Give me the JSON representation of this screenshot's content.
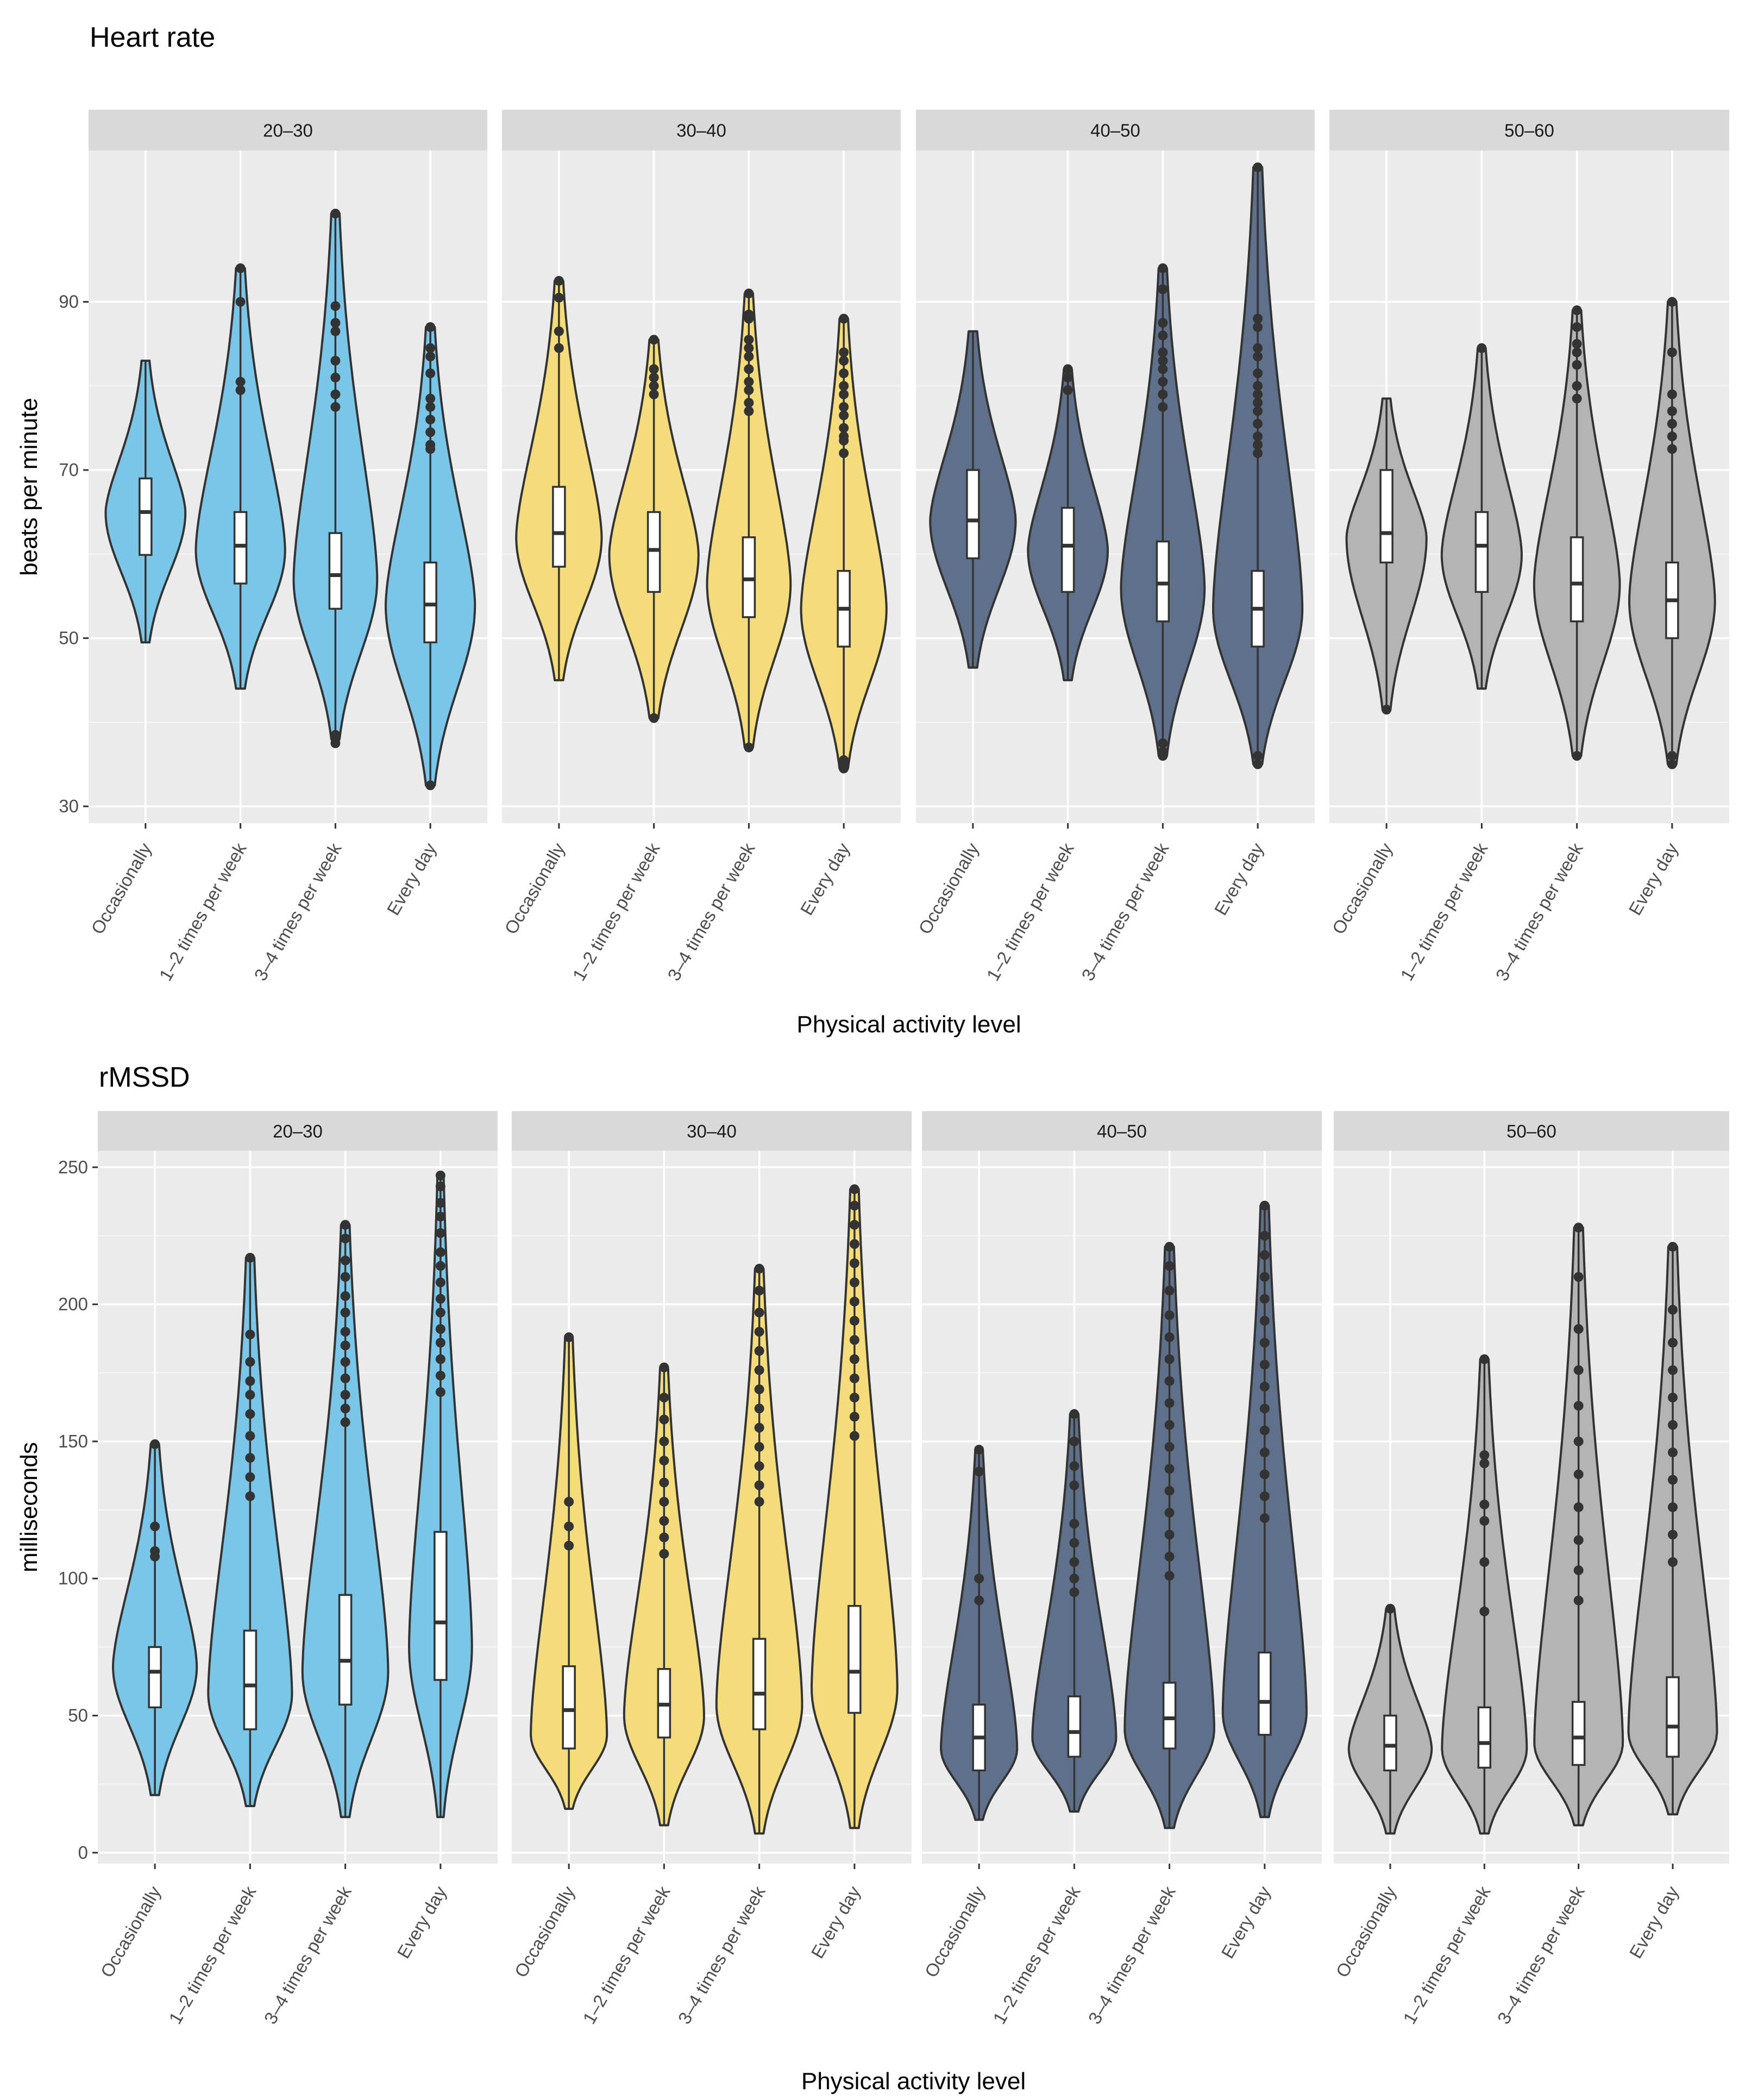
{
  "colors": {
    "age_groups": {
      "20–30": "#7ac6e8",
      "30–40": "#f4dc7a",
      "40–50": "#5f708a",
      "50–60": "#b4b4b4"
    },
    "panel_background": "#ebebeb",
    "strip_background": "#d9d9d9",
    "grid_major": "#ffffff",
    "outline": "#333333"
  },
  "chart_data": [
    {
      "type": "violin",
      "title": "Heart rate",
      "xlabel": "Physical activity level",
      "ylabel": "beats per minute",
      "ylim": [
        28,
        108
      ],
      "yticks": [
        30,
        50,
        70,
        90
      ],
      "facets": [
        "20–30",
        "30–40",
        "40–50",
        "50–60"
      ],
      "categories": [
        "Occasionally",
        "1–2 times per week",
        "3–4 times per week",
        "Every day"
      ],
      "series": [
        {
          "name": "20–30",
          "groups": [
            {
              "category": "Occasionally",
              "min": 49.5,
              "q1": 59.9,
              "median": 65.0,
              "q3": 69.0,
              "max": 83.0,
              "mode": 65.0,
              "width": 0.42,
              "outliers": []
            },
            {
              "category": "1–2 times per week",
              "min": 44.0,
              "q1": 56.5,
              "median": 61.0,
              "q3": 65.0,
              "max": 94.0,
              "mode": 60.5,
              "width": 0.47,
              "outliers": [
                94.0,
                90.0,
                80.5,
                79.5
              ]
            },
            {
              "category": "3–4 times per week",
              "min": 38.0,
              "q1": 53.5,
              "median": 57.5,
              "q3": 62.5,
              "max": 100.5,
              "mode": 57.0,
              "width": 0.44,
              "outliers": [
                100.5,
                89.5,
                87.5,
                86.5,
                83.0,
                81.0,
                79.0,
                77.5,
                38.5,
                38.0,
                37.5
              ]
            },
            {
              "category": "Every day",
              "min": 32.5,
              "q1": 49.5,
              "median": 54.0,
              "q3": 59.0,
              "max": 87.0,
              "mode": 54.0,
              "width": 0.47,
              "outliers": [
                87.0,
                84.5,
                83.5,
                81.5,
                78.5,
                77.5,
                76.0,
                74.5,
                73.0,
                72.5,
                32.5
              ]
            }
          ]
        },
        {
          "name": "30–40",
          "groups": [
            {
              "category": "Occasionally",
              "min": 45.0,
              "q1": 58.5,
              "median": 62.5,
              "q3": 68.0,
              "max": 92.5,
              "mode": 62.0,
              "width": 0.45,
              "outliers": [
                92.5,
                90.5,
                86.5,
                84.5
              ]
            },
            {
              "category": "1–2 times per week",
              "min": 40.5,
              "q1": 55.5,
              "median": 60.5,
              "q3": 65.0,
              "max": 85.5,
              "mode": 60.0,
              "width": 0.47,
              "outliers": [
                85.5,
                82.0,
                81.0,
                80.0,
                79.0,
                40.5
              ]
            },
            {
              "category": "3–4 times per week",
              "min": 37.0,
              "q1": 52.5,
              "median": 57.0,
              "q3": 62.0,
              "max": 91.0,
              "mode": 56.5,
              "width": 0.44,
              "outliers": [
                91.0,
                88.5,
                88.0,
                85.5,
                84.5,
                83.5,
                82.0,
                80.5,
                79.5,
                78.0,
                77.0,
                37.0
              ]
            },
            {
              "category": "Every day",
              "min": 34.5,
              "q1": 49.0,
              "median": 53.5,
              "q3": 58.0,
              "max": 88.0,
              "mode": 53.5,
              "width": 0.45,
              "outliers": [
                88.0,
                84.0,
                83.0,
                81.5,
                80.0,
                79.0,
                77.5,
                76.5,
                75.0,
                74.0,
                73.5,
                72.0,
                35.5,
                35.0,
                34.5
              ]
            }
          ]
        },
        {
          "name": "40–50",
          "groups": [
            {
              "category": "Occasionally",
              "min": 46.5,
              "q1": 59.5,
              "median": 64.0,
              "q3": 70.0,
              "max": 86.5,
              "mode": 64.0,
              "width": 0.45,
              "outliers": []
            },
            {
              "category": "1–2 times per week",
              "min": 45.0,
              "q1": 55.5,
              "median": 61.0,
              "q3": 65.5,
              "max": 82.0,
              "mode": 60.5,
              "width": 0.42,
              "outliers": [
                82.0,
                81.0,
                79.5
              ]
            },
            {
              "category": "3–4 times per week",
              "min": 36.0,
              "q1": 52.0,
              "median": 56.5,
              "q3": 61.5,
              "max": 94.0,
              "mode": 56.0,
              "width": 0.44,
              "outliers": [
                94.0,
                91.5,
                87.5,
                86.0,
                84.0,
                83.0,
                82.0,
                80.5,
                79.0,
                77.5,
                37.5,
                36.5,
                36.0
              ]
            },
            {
              "category": "Every day",
              "min": 35.0,
              "q1": 49.0,
              "median": 53.5,
              "q3": 58.0,
              "max": 106.0,
              "mode": 53.5,
              "width": 0.47,
              "outliers": [
                106.0,
                88.0,
                87.0,
                84.5,
                83.5,
                81.5,
                80.0,
                79.0,
                78.0,
                77.0,
                75.5,
                74.0,
                73.0,
                72.0,
                36.0,
                35.0
              ]
            }
          ]
        },
        {
          "name": "50–60",
          "groups": [
            {
              "category": "Occasionally",
              "min": 41.5,
              "q1": 59.0,
              "median": 62.5,
              "q3": 70.0,
              "max": 78.5,
              "mode": 62.0,
              "width": 0.42,
              "outliers": [
                41.5
              ]
            },
            {
              "category": "1–2 times per week",
              "min": 44.0,
              "q1": 55.5,
              "median": 61.0,
              "q3": 65.0,
              "max": 84.5,
              "mode": 60.0,
              "width": 0.42,
              "outliers": [
                84.5
              ]
            },
            {
              "category": "3–4 times per week",
              "min": 36.0,
              "q1": 52.0,
              "median": 56.5,
              "q3": 62.0,
              "max": 89.0,
              "mode": 56.5,
              "width": 0.45,
              "outliers": [
                89.0,
                87.0,
                85.0,
                84.0,
                82.5,
                80.0,
                78.5,
                36.0
              ]
            },
            {
              "category": "Every day",
              "min": 35.0,
              "q1": 50.0,
              "median": 54.5,
              "q3": 59.0,
              "max": 90.0,
              "mode": 54.5,
              "width": 0.45,
              "outliers": [
                90.0,
                84.0,
                79.0,
                77.0,
                75.5,
                74.0,
                72.5,
                36.0,
                35.0
              ]
            }
          ]
        }
      ]
    },
    {
      "type": "violin",
      "title": "rMSSD",
      "xlabel": "Physical activity level",
      "ylabel": "milliseconds",
      "ylim": [
        -4,
        256
      ],
      "yticks": [
        0,
        50,
        100,
        150,
        200,
        250
      ],
      "facets": [
        "20–30",
        "30–40",
        "40–50",
        "50–60"
      ],
      "categories": [
        "Occasionally",
        "1–2 times per week",
        "3–4 times per week",
        "Every day"
      ],
      "series": [
        {
          "name": "20–30",
          "groups": [
            {
              "category": "Occasionally",
              "min": 21.0,
              "q1": 53.0,
              "median": 66.0,
              "q3": 75.0,
              "max": 149.0,
              "mode": 68.0,
              "width": 0.44,
              "outliers": [
                149.0,
                119.0,
                110.0,
                108.0
              ]
            },
            {
              "category": "1–2 times per week",
              "min": 17.0,
              "q1": 45.0,
              "median": 61.0,
              "q3": 81.0,
              "max": 217.0,
              "mode": 58.0,
              "width": 0.44,
              "outliers": [
                217.0,
                189.0,
                179.0,
                172.0,
                167.0,
                160.0,
                152.0,
                144.0,
                137.0,
                130.0
              ]
            },
            {
              "category": "3–4 times per week",
              "min": 13.0,
              "q1": 54.0,
              "median": 70.0,
              "q3": 94.0,
              "max": 229.0,
              "mode": 66.0,
              "width": 0.45,
              "outliers": [
                229.0,
                224.0,
                216.0,
                210.0,
                203.0,
                197.0,
                190.0,
                185.0,
                179.0,
                173.0,
                167.0,
                162.0,
                157.0
              ]
            },
            {
              "category": "Every day",
              "min": 13.0,
              "q1": 63.0,
              "median": 84.0,
              "q3": 117.0,
              "max": 247.0,
              "mode": 75.0,
              "width": 0.33,
              "outliers": [
                247.0,
                243.0,
                237.0,
                232.0,
                226.0,
                219.0,
                214.0,
                208.0,
                202.0,
                197.0,
                191.0,
                186.0,
                180.0,
                174.0,
                168.0
              ]
            }
          ]
        },
        {
          "name": "30–40",
          "groups": [
            {
              "category": "Occasionally",
              "min": 16.0,
              "q1": 38.0,
              "median": 52.0,
              "q3": 68.0,
              "max": 188.0,
              "mode": 43.0,
              "width": 0.4,
              "outliers": [
                188.0,
                128.0,
                119.0,
                112.0
              ]
            },
            {
              "category": "1–2 times per week",
              "min": 10.0,
              "q1": 42.0,
              "median": 54.0,
              "q3": 67.0,
              "max": 177.0,
              "mode": 50.0,
              "width": 0.42,
              "outliers": [
                177.0,
                166.0,
                158.0,
                150.0,
                143.0,
                135.0,
                128.0,
                121.0,
                115.0,
                109.0
              ]
            },
            {
              "category": "3–4 times per week",
              "min": 7.0,
              "q1": 45.0,
              "median": 58.0,
              "q3": 78.0,
              "max": 213.0,
              "mode": 54.0,
              "width": 0.45,
              "outliers": [
                213.0,
                205.0,
                197.0,
                190.0,
                183.0,
                176.0,
                169.0,
                162.0,
                155.0,
                148.0,
                141.0,
                134.0,
                128.0
              ]
            },
            {
              "category": "Every day",
              "min": 9.0,
              "q1": 51.0,
              "median": 66.0,
              "q3": 90.0,
              "max": 242.0,
              "mode": 60.0,
              "width": 0.45,
              "outliers": [
                242.0,
                236.0,
                229.0,
                222.0,
                215.0,
                208.0,
                201.0,
                194.0,
                187.0,
                180.0,
                173.0,
                166.0,
                159.0,
                152.0
              ]
            }
          ]
        },
        {
          "name": "40–50",
          "groups": [
            {
              "category": "Occasionally",
              "min": 12.0,
              "q1": 30.0,
              "median": 42.0,
              "q3": 54.0,
              "max": 147.0,
              "mode": 38.0,
              "width": 0.4,
              "outliers": [
                147.0,
                139.0,
                100.0,
                92.0
              ]
            },
            {
              "category": "1–2 times per week",
              "min": 15.0,
              "q1": 35.0,
              "median": 44.0,
              "q3": 57.0,
              "max": 160.0,
              "mode": 42.0,
              "width": 0.44,
              "outliers": [
                160.0,
                150.0,
                141.0,
                134.0,
                120.0,
                113.0,
                106.0,
                100.0,
                95.0
              ]
            },
            {
              "category": "3–4 times per week",
              "min": 9.0,
              "q1": 38.0,
              "median": 49.0,
              "q3": 62.0,
              "max": 221.0,
              "mode": 45.0,
              "width": 0.47,
              "outliers": [
                221.0,
                214.0,
                205.0,
                196.0,
                188.0,
                180.0,
                172.0,
                164.0,
                156.0,
                148.0,
                140.0,
                132.0,
                124.0,
                116.0,
                108.0,
                101.0
              ]
            },
            {
              "category": "Every day",
              "min": 13.0,
              "q1": 43.0,
              "median": 55.0,
              "q3": 73.0,
              "max": 236.0,
              "mode": 51.0,
              "width": 0.44,
              "outliers": [
                236.0,
                225.0,
                218.0,
                210.0,
                202.0,
                194.0,
                186.0,
                178.0,
                170.0,
                162.0,
                154.0,
                146.0,
                138.0,
                130.0,
                122.0
              ]
            }
          ]
        },
        {
          "name": "50–60",
          "groups": [
            {
              "category": "Occasionally",
              "min": 7.0,
              "q1": 30.0,
              "median": 39.0,
              "q3": 50.0,
              "max": 89.0,
              "mode": 38.0,
              "width": 0.44,
              "outliers": [
                89.0
              ]
            },
            {
              "category": "1–2 times per week",
              "min": 7.0,
              "q1": 31.0,
              "median": 40.0,
              "q3": 53.0,
              "max": 180.0,
              "mode": 38.0,
              "width": 0.45,
              "outliers": [
                180.0,
                145.0,
                142.0,
                127.0,
                121.0,
                106.0,
                88.0
              ]
            },
            {
              "category": "3–4 times per week",
              "min": 10.0,
              "q1": 32.0,
              "median": 42.0,
              "q3": 55.0,
              "max": 228.0,
              "mode": 40.0,
              "width": 0.47,
              "outliers": [
                228.0,
                210.0,
                191.0,
                176.0,
                163.0,
                150.0,
                138.0,
                126.0,
                114.0,
                103.0,
                92.0
              ]
            },
            {
              "category": "Every day",
              "min": 14.0,
              "q1": 35.0,
              "median": 46.0,
              "q3": 64.0,
              "max": 221.0,
              "mode": 44.0,
              "width": 0.47,
              "outliers": [
                221.0,
                198.0,
                186.0,
                176.0,
                166.0,
                156.0,
                146.0,
                136.0,
                126.0,
                116.0,
                106.0
              ]
            }
          ]
        }
      ]
    }
  ]
}
